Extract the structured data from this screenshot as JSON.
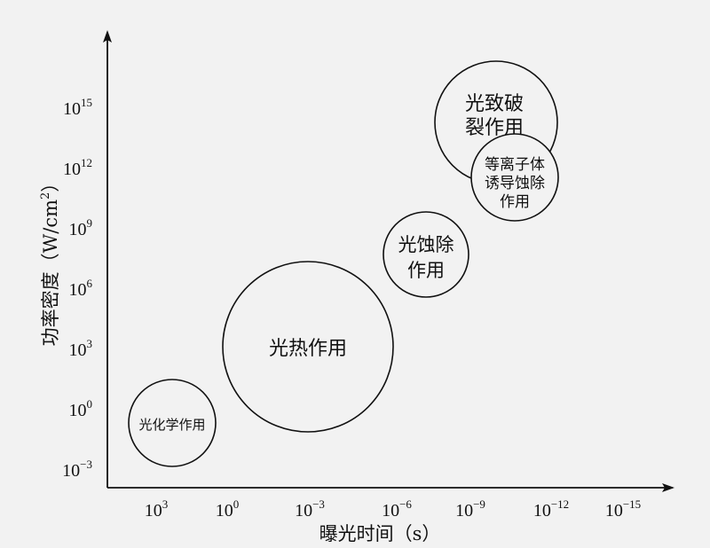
{
  "x_axis": {
    "title": "曝光时间（s）",
    "ticks": [
      {
        "base": "10",
        "exp": "3"
      },
      {
        "base": "10",
        "exp": "0"
      },
      {
        "base": "10",
        "exp": "−3"
      },
      {
        "base": "10",
        "exp": "−6"
      },
      {
        "base": "10",
        "exp": "−9"
      },
      {
        "base": "10",
        "exp": "−12"
      },
      {
        "base": "10",
        "exp": "−15"
      }
    ]
  },
  "y_axis": {
    "title_main": "功率密度（W/cm",
    "title_sup": "2",
    "title_end": "）",
    "ticks": [
      {
        "base": "10",
        "exp": "−3"
      },
      {
        "base": "10",
        "exp": "0"
      },
      {
        "base": "10",
        "exp": "3"
      },
      {
        "base": "10",
        "exp": "6"
      },
      {
        "base": "10",
        "exp": "9"
      },
      {
        "base": "10",
        "exp": "12"
      },
      {
        "base": "10",
        "exp": "15"
      }
    ]
  },
  "regions": [
    {
      "id": "photochemical",
      "lines": [
        "光化学作用"
      ]
    },
    {
      "id": "photothermal",
      "lines": [
        "光热作用"
      ]
    },
    {
      "id": "photoablation",
      "lines": [
        "光蚀除",
        "作用"
      ]
    },
    {
      "id": "photodisruption",
      "lines": [
        "光致破",
        "裂作用"
      ]
    },
    {
      "id": "plasma-ablation",
      "lines": [
        "等离子体",
        "诱导蚀除",
        "作用"
      ]
    }
  ]
}
